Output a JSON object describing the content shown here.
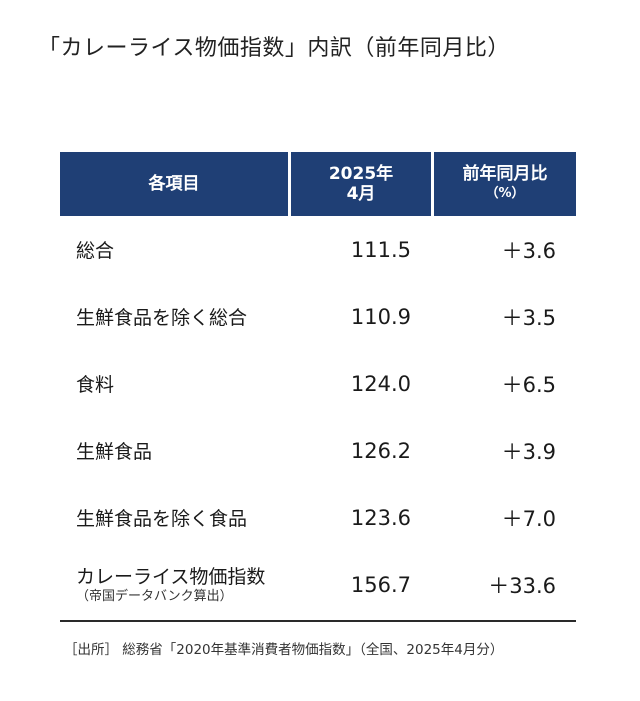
{
  "title": "「カレーライス物価指数」内訳（前年同月比）",
  "table": {
    "headers": {
      "item": "各項目",
      "value_line1": "2025年",
      "value_line2": "4月",
      "yoy_line1": "前年同月比",
      "yoy_line2": "（%）"
    },
    "rows": [
      {
        "name": "総合",
        "value": "111.5",
        "yoy": "＋3.6"
      },
      {
        "name": "生鮮食品を除く総合",
        "value": "110.9",
        "yoy": "＋3.5"
      },
      {
        "name": "食料",
        "value": "124.0",
        "yoy": "＋6.5"
      },
      {
        "name": "生鮮食品",
        "value": "126.2",
        "yoy": "＋3.9"
      },
      {
        "name": "生鮮食品を除く食品",
        "value": "123.6",
        "yoy": "＋7.0"
      },
      {
        "name": "カレーライス物価指数",
        "note": "（帝国データバンク算出）",
        "value": "156.7",
        "yoy": "＋33.6"
      }
    ]
  },
  "source": "［出所］ 総務省「2020年基準消費者物価指数」（全国、2025年4月分）",
  "colors": {
    "header_bg": "#1f3f75",
    "header_text": "#ffffff"
  }
}
